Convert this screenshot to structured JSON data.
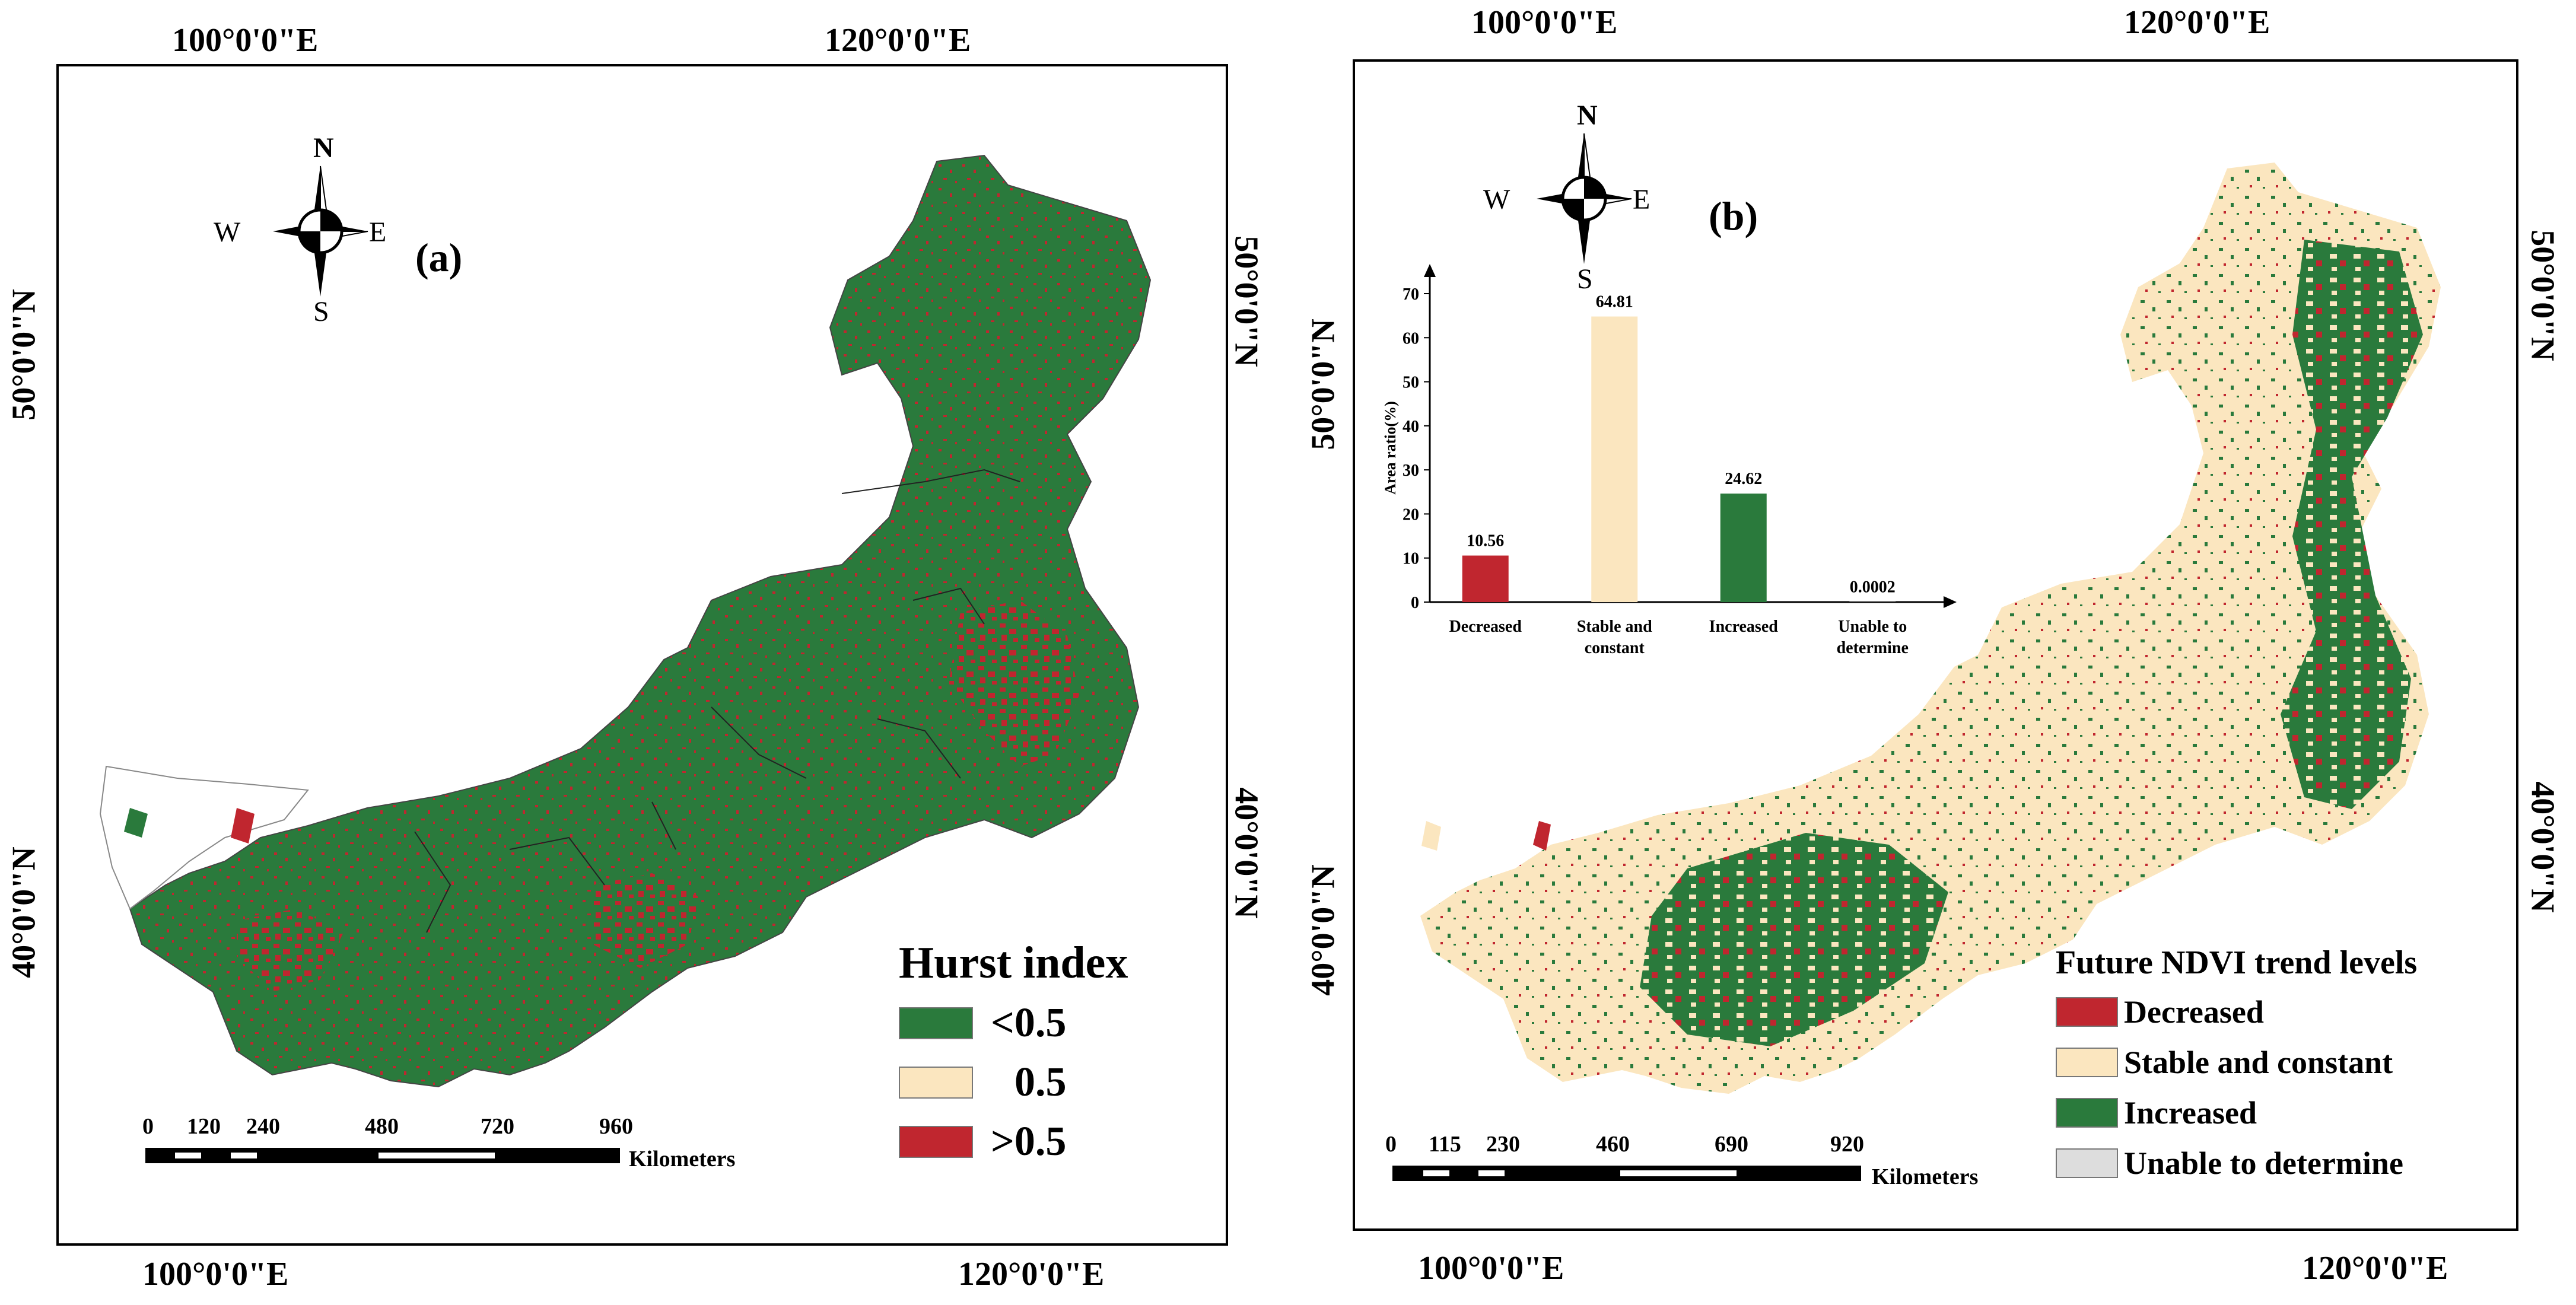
{
  "panels": {
    "left": {
      "label": "(a)",
      "top_lon": [
        "100°0'0\"E",
        "120°0'0\"E"
      ],
      "bottom_lon": [
        "100°0'0\"E",
        "120°0'0\"E"
      ],
      "left_lat": [
        "50°0'0\"N",
        "40°0'0\"N"
      ],
      "right_lat": [
        "50°0'0\"N",
        "40°0'0\"N"
      ],
      "compass": {
        "n": "N",
        "s": "S",
        "e": "E",
        "w": "W"
      },
      "legend": {
        "title": "Hurst index",
        "items": [
          {
            "label": "<0.5",
            "color": "#2a7a3c"
          },
          {
            "label": "0.5",
            "color": "#fbe6bf"
          },
          {
            "label": ">0.5",
            "color": "#c0262f"
          }
        ]
      },
      "scale_bar": {
        "ticks": [
          "0",
          "120",
          "240",
          "480",
          "720",
          "960"
        ],
        "unit": "Kilometers"
      }
    },
    "right": {
      "label": "(b)",
      "top_lon": [
        "100°0'0\"E",
        "120°0'0\"E"
      ],
      "bottom_lon": [
        "100°0'0\"E",
        "120°0'0\"E"
      ],
      "left_lat": [
        "50°0'0\"N",
        "40°0'0\"N"
      ],
      "right_lat": [
        "50°0'0\"N",
        "40°0'0\"N"
      ],
      "compass": {
        "n": "N",
        "s": "S",
        "e": "E",
        "w": "W"
      },
      "legend": {
        "title": "Future NDVI trend levels",
        "items": [
          {
            "label": "Decreased",
            "color": "#c0262f"
          },
          {
            "label": "Stable and constant",
            "color": "#fbe6bf"
          },
          {
            "label": "Increased",
            "color": "#2a7a3c"
          },
          {
            "label": "Unable to determine",
            "color": "#dddddd"
          }
        ]
      },
      "scale_bar": {
        "ticks": [
          "0",
          "115",
          "230",
          "460",
          "690",
          "920"
        ],
        "unit": "Kilometers"
      }
    }
  },
  "chart_data": {
    "type": "bar",
    "categories": [
      "Decreased",
      "Stable and constant",
      "Increased",
      "Unable to determine"
    ],
    "values": [
      10.56,
      64.81,
      24.62,
      0.0002
    ],
    "value_labels": [
      "10.56",
      "64.81",
      "24.62",
      "0.0002"
    ],
    "colors": [
      "#c0262f",
      "#fbe6bf",
      "#2a7a3c",
      "#dddddd"
    ],
    "ylabel": "Area ratio(%)",
    "ylim": [
      0,
      70
    ],
    "yticks": [
      "0",
      "10",
      "20",
      "30",
      "40",
      "50",
      "60",
      "70"
    ]
  }
}
